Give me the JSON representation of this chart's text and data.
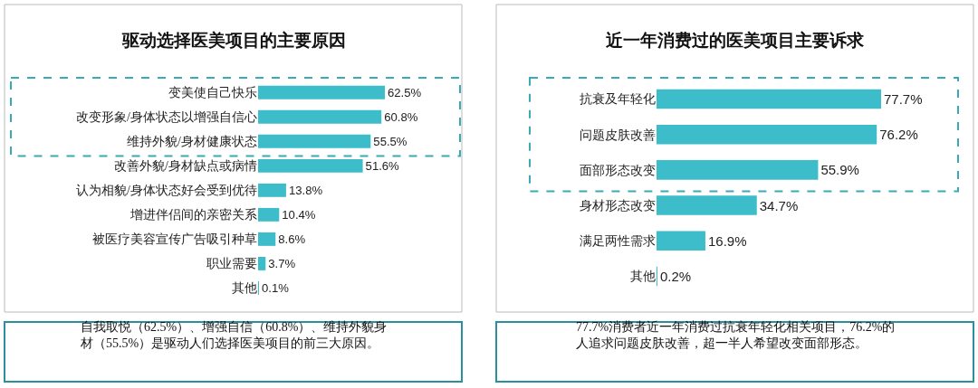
{
  "chart_data": [
    {
      "type": "bar",
      "orientation": "horizontal",
      "title": "驱动选择医美项目的主要原因",
      "categories": [
        "变美使自己快乐",
        "改变形象/身体状态以增强自信心",
        "维持外貌/身材健康状态",
        "改善外貌/身材缺点或病情",
        "认为相貌/身体状态好会受到优待",
        "增进伴侣间的亲密关系",
        "被医疗美容宣传广告吸引种草",
        "职业需要",
        "其他"
      ],
      "values": [
        62.5,
        60.8,
        55.5,
        51.6,
        13.8,
        10.4,
        8.6,
        3.7,
        0.1
      ],
      "value_labels": [
        "62.5%",
        "60.8%",
        "55.5%",
        "51.6%",
        "13.8%",
        "10.4%",
        "8.6%",
        "3.7%",
        "0.1%"
      ],
      "color": "#3dbcc9",
      "annotations": [
        "自我取悦（62.5%）、增强自信（60.8%）、维持外貌身材（55.5%）是驱动人们选择医美项目的前三大原因。"
      ]
    },
    {
      "type": "bar",
      "orientation": "horizontal",
      "title": "近一年消费过的医美项目主要诉求",
      "categories": [
        "抗衰及年轻化",
        "问题皮肤改善",
        "面部形态改变",
        "身材形态改变",
        "满足两性需求",
        "其他"
      ],
      "values": [
        77.7,
        76.2,
        55.9,
        34.7,
        16.9,
        0.2
      ],
      "value_labels": [
        "77.7%",
        "76.2%",
        "55.9%",
        "34.7%",
        "16.9%",
        "0.2%"
      ],
      "color": "#3dbcc9",
      "annotations": [
        "77.7%消费者近一年消费过抗衰年轻化相关项目，76.2%的人追求问题皮肤改善，超一半人希望改变面部形态。"
      ]
    }
  ]
}
